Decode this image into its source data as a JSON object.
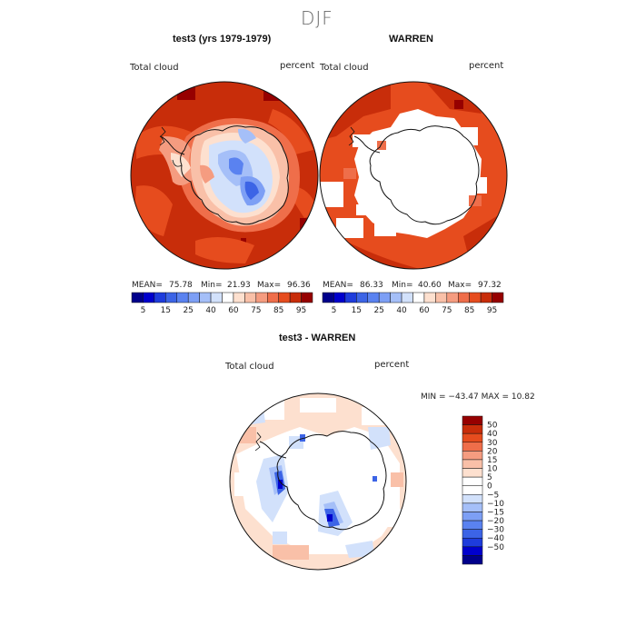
{
  "figure": {
    "title": "DJF"
  },
  "chart_data": [
    {
      "type": "heatmap",
      "title": "test3 (yrs 1979-1979)",
      "left_label": "Total cloud",
      "right_label": "percent",
      "stats": {
        "mean_label": "MEAN=",
        "mean": "75.78",
        "min_label": "Min=",
        "min": "21.93",
        "max_label": "Max=",
        "max": "96.36"
      },
      "colorbar": {
        "levels": [
          5,
          10,
          15,
          20,
          25,
          30,
          40,
          50,
          60,
          70,
          75,
          80,
          85,
          90,
          95
        ],
        "tick_labels": [
          "5",
          "15",
          "25",
          "40",
          "60",
          "75",
          "85",
          "95"
        ],
        "colors": [
          "#00008b",
          "#0000cd",
          "#1e3cdc",
          "#3c64e6",
          "#5a82f0",
          "#7d9ff5",
          "#a5bff8",
          "#d2e1fb",
          "#ffffff",
          "#fde0cf",
          "#f9c0a8",
          "#f59c80",
          "#ef6e4a",
          "#e64c1e",
          "#c82d0a",
          "#960000"
        ]
      }
    },
    {
      "type": "heatmap",
      "title": "WARREN",
      "left_label": "Total cloud",
      "right_label": "percent",
      "stats": {
        "mean_label": "MEAN=",
        "mean": "86.33",
        "min_label": "Min=",
        "min": "40.60",
        "max_label": "Max=",
        "max": "97.32"
      },
      "colorbar": {
        "levels": [
          5,
          10,
          15,
          20,
          25,
          30,
          40,
          50,
          60,
          70,
          75,
          80,
          85,
          90,
          95
        ],
        "tick_labels": [
          "5",
          "15",
          "25",
          "40",
          "60",
          "75",
          "85",
          "95"
        ],
        "colors": [
          "#00008b",
          "#0000cd",
          "#1e3cdc",
          "#3c64e6",
          "#5a82f0",
          "#7d9ff5",
          "#a5bff8",
          "#d2e1fb",
          "#ffffff",
          "#fde0cf",
          "#f9c0a8",
          "#f59c80",
          "#ef6e4a",
          "#e64c1e",
          "#c82d0a",
          "#960000"
        ]
      }
    },
    {
      "type": "heatmap",
      "title": "test3 - WARREN",
      "left_label": "Total cloud",
      "right_label": "percent",
      "stats_text": "MIN = −43.47  MAX =   10.82",
      "colorbar": {
        "tick_labels": [
          "50",
          "40",
          "30",
          "20",
          "15",
          "10",
          "5",
          "0",
          "−5",
          "−10",
          "−15",
          "−20",
          "−30",
          "−40",
          "−50"
        ],
        "colors": [
          "#960000",
          "#c82d0a",
          "#e64c1e",
          "#ef6e4a",
          "#f59c80",
          "#f9c0a8",
          "#fde0cf",
          "#ffffff",
          "#ffffff",
          "#d2e1fb",
          "#a5bff8",
          "#7d9ff5",
          "#5a82f0",
          "#3c64e6",
          "#1e3cdc",
          "#0000cd",
          "#00008b"
        ]
      }
    }
  ]
}
